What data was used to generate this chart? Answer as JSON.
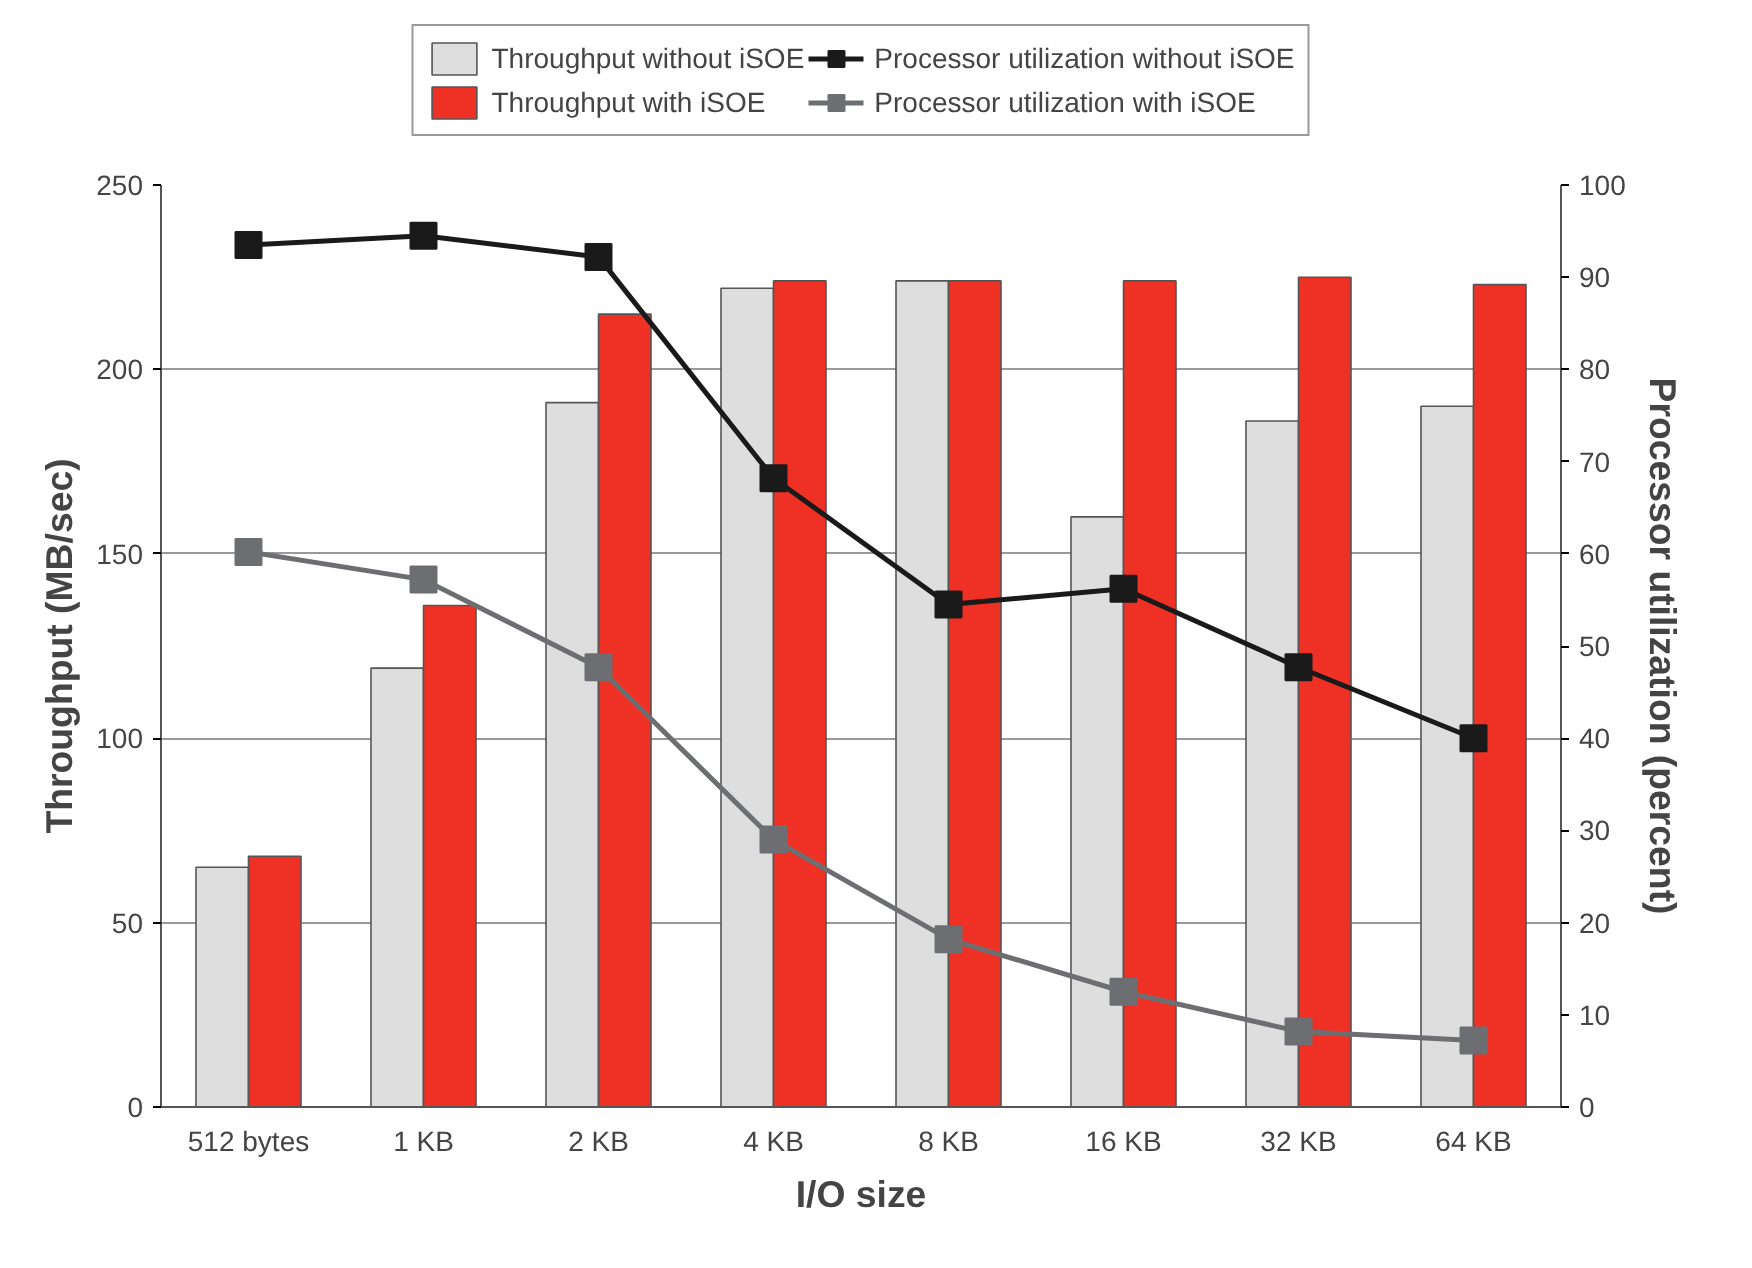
{
  "chart_data": {
    "type": "bar",
    "xlabel": "I/O size",
    "ylabel": "Throughput (MB/sec)",
    "y2label": "Processor utilization (percent)",
    "categories": [
      "512 bytes",
      "1 KB",
      "2 KB",
      "4 KB",
      "8 KB",
      "16 KB",
      "32 KB",
      "64 KB"
    ],
    "series": [
      {
        "name": "Throughput without iSOE",
        "color": "#dedede",
        "values": [
          65,
          119,
          191,
          222,
          224,
          160,
          186,
          190
        ]
      },
      {
        "name": "Throughput with iSOE",
        "color": "#ee3124",
        "values": [
          68,
          136,
          215,
          224,
          224,
          224,
          225,
          223
        ]
      },
      {
        "name": "Processor utilization without iSOE",
        "type": "line",
        "axis": "y2",
        "color": "#1a1a1a",
        "values": [
          93.5,
          94.5,
          92.2,
          68.2,
          54.5,
          56.2,
          47.7,
          40
        ]
      },
      {
        "name": "Processor utilization with iSOE",
        "type": "line",
        "axis": "y2",
        "color": "#6d6e71",
        "values": [
          60.2,
          57.2,
          47.7,
          29,
          18.2,
          12.5,
          8.2,
          7.2
        ]
      }
    ],
    "ylim": [
      0,
      250
    ],
    "yticks": [
      0,
      50,
      100,
      150,
      200,
      250
    ],
    "y2lim": [
      0,
      100
    ],
    "y2ticks": [
      0,
      10,
      20,
      30,
      40,
      50,
      60,
      70,
      80,
      90,
      100
    ],
    "grid": "y",
    "legend": "top",
    "marker": "square",
    "line_style": "solid"
  }
}
